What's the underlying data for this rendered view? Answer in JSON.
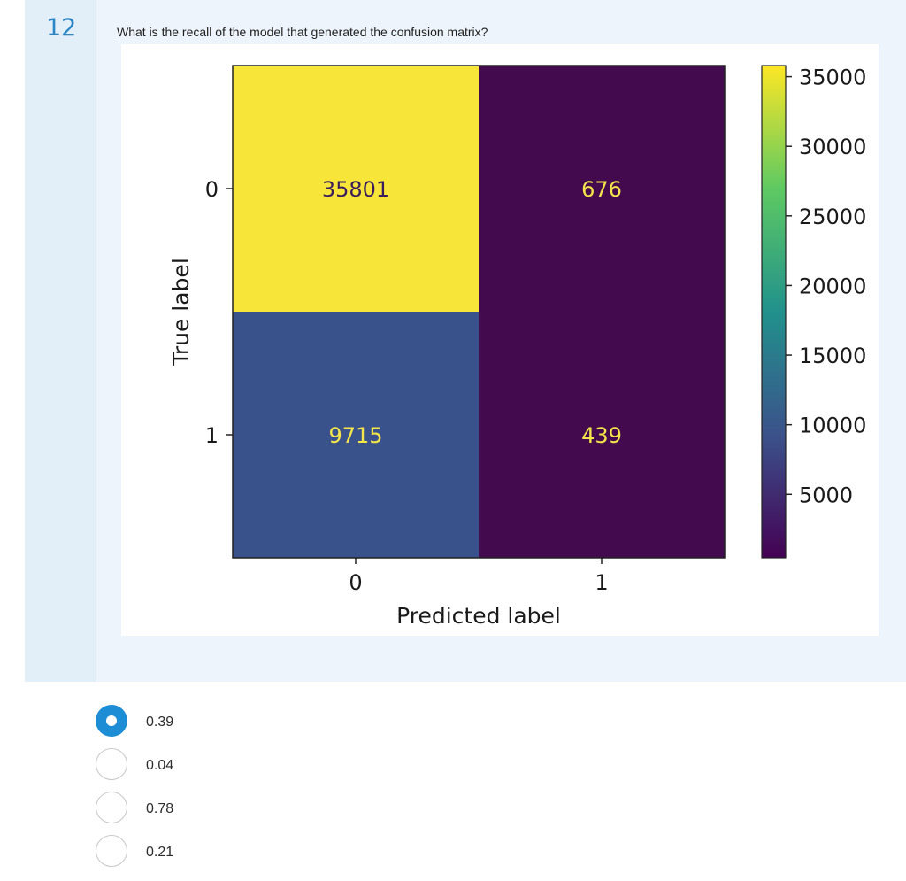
{
  "question": {
    "number": "12",
    "text": "What is the recall of the model that generated the confusion matrix?"
  },
  "chart_data": {
    "type": "heatmap",
    "title": "",
    "xlabel": "Predicted label",
    "ylabel": "True label",
    "x_categories": [
      "0",
      "1"
    ],
    "y_categories": [
      "0",
      "1"
    ],
    "matrix": [
      [
        35801,
        676
      ],
      [
        9715,
        439
      ]
    ],
    "cell_text_colors": [
      [
        "#3b1f5c",
        "#f4e54a"
      ],
      [
        "#f4e54a",
        "#f4e54a"
      ]
    ],
    "cell_colors": [
      [
        "#f8e53a",
        "#440a4e"
      ],
      [
        "#3a528b",
        "#440a4e"
      ]
    ],
    "colorbar": {
      "range": [
        439,
        35801
      ],
      "ticks": [
        35000,
        30000,
        25000,
        20000,
        15000,
        10000,
        5000
      ],
      "colormap": "viridis",
      "colors": [
        "#440154",
        "#3b528b",
        "#21918c",
        "#5ec962",
        "#fde725"
      ]
    }
  },
  "answers": {
    "options": [
      {
        "label": "0.39",
        "selected": true
      },
      {
        "label": "0.04",
        "selected": false
      },
      {
        "label": "0.78",
        "selected": false
      },
      {
        "label": "0.21",
        "selected": false
      }
    ]
  },
  "colors": {
    "accent": "#1d8ed6",
    "question_number": "#2b86c5",
    "card_background": "#eef4fb"
  }
}
